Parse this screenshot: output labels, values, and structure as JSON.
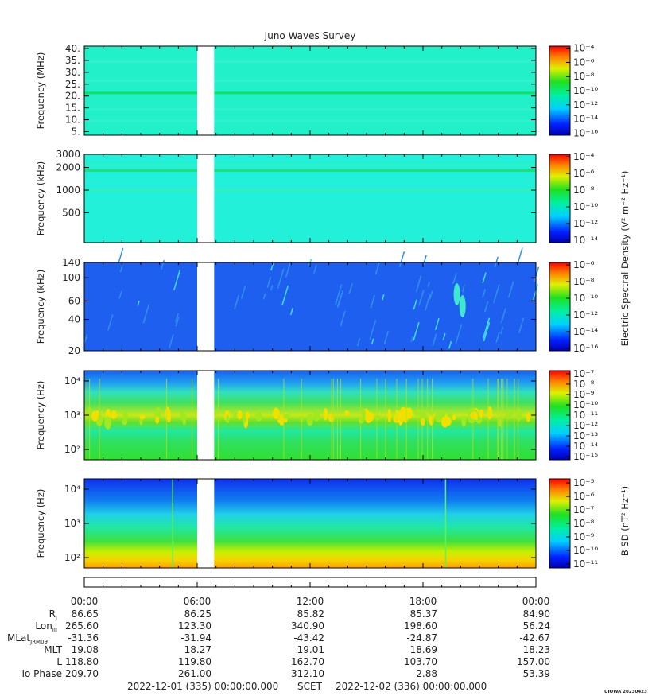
{
  "title": "Juno Waves Survey",
  "footer": {
    "start": "2022-12-01 (335) 00:00:00.000",
    "mid": "SCET",
    "end": "2022-12-02 (336) 00:00:00.000",
    "credit": "UIOWA 20230423"
  },
  "colorbar_titles": {
    "electric": "Electric Spectral Density (V² m⁻² Hz⁻¹)",
    "magnetic": "B SD (nT² Hz⁻¹)"
  },
  "time_ticks": [
    "00:00",
    "06:00",
    "12:00",
    "18:00",
    "00:00"
  ],
  "ephemeris": {
    "rows": [
      {
        "label": "RJ",
        "values": [
          "86.65",
          "86.25",
          "85.82",
          "85.37",
          "84.90"
        ]
      },
      {
        "label": "LonIII",
        "values": [
          "265.60",
          "123.30",
          "340.90",
          "198.60",
          "56.24"
        ]
      },
      {
        "label": "MLatJRM09",
        "values": [
          "-31.36",
          "-31.94",
          "-43.42",
          "-24.87",
          "-42.67"
        ]
      },
      {
        "label": "MLT",
        "values": [
          "19.08",
          "18.27",
          "19.01",
          "18.69",
          "18.23"
        ]
      },
      {
        "label": "L",
        "values": [
          "118.80",
          "119.80",
          "162.70",
          "103.70",
          "157.00"
        ]
      },
      {
        "label": "Io Phase",
        "values": [
          "209.70",
          "261.00",
          "312.10",
          "2.88",
          "53.39"
        ]
      }
    ]
  },
  "chart_data": [
    {
      "type": "heatmap",
      "ylabel": "Frequency (MHz)",
      "yscale": "linear",
      "ylim": [
        3.5,
        41
      ],
      "yticks": [
        5,
        10,
        15,
        20,
        25,
        30,
        35,
        40
      ],
      "ytick_labels": [
        "5.",
        "10.",
        "15.",
        "20.",
        "25.",
        "30.",
        "35.",
        "40."
      ],
      "data_gap": {
        "start_hour": 6.0,
        "end_hour": 6.9
      },
      "colorbar": {
        "labels": [
          "10⁻⁴",
          "10⁻⁶",
          "10⁻⁸",
          "10⁻¹⁰",
          "10⁻¹²",
          "10⁻¹⁴",
          "10⁻¹⁶"
        ],
        "exponents": [
          -4,
          -6,
          -8,
          -10,
          -12,
          -14,
          -16
        ]
      },
      "background_color": "#22f0c8"
    },
    {
      "type": "heatmap",
      "ylabel": "Frequency (kHz)",
      "yscale": "log",
      "ylim": [
        200,
        3000
      ],
      "yticks": [
        500,
        1000,
        2000,
        3000
      ],
      "ytick_labels": [
        "500",
        "1000",
        "2000",
        "3000"
      ],
      "data_gap": {
        "start_hour": 6.0,
        "end_hour": 6.9
      },
      "colorbar": {
        "labels": [
          "10⁻⁴",
          "10⁻⁶",
          "10⁻⁸",
          "10⁻¹⁰",
          "10⁻¹²",
          "10⁻¹⁴"
        ],
        "exponents": [
          -4,
          -6,
          -8,
          -10,
          -12,
          -14
        ]
      },
      "background_color": "#22f0d8"
    },
    {
      "type": "heatmap",
      "ylabel": "Frequency (kHz)",
      "yscale": "log",
      "ylim": [
        20,
        140
      ],
      "yticks": [
        20,
        40,
        60,
        100,
        140
      ],
      "ytick_labels": [
        "20",
        "40",
        "60",
        "100",
        "140"
      ],
      "data_gap": {
        "start_hour": 6.0,
        "end_hour": 6.9
      },
      "colorbar": {
        "labels": [
          "10⁻⁶",
          "10⁻⁸",
          "10⁻¹⁰",
          "10⁻¹²",
          "10⁻¹⁴",
          "10⁻¹⁶"
        ],
        "exponents": [
          -6,
          -8,
          -10,
          -12,
          -14,
          -16
        ]
      },
      "background_color": "#1f5ff0"
    },
    {
      "type": "heatmap",
      "ylabel": "Frequency (Hz)",
      "yscale": "log",
      "ylim": [
        50,
        20000
      ],
      "yticks": [
        100,
        1000,
        10000
      ],
      "ytick_labels": [
        "10²",
        "10³",
        "10⁴"
      ],
      "data_gap": {
        "start_hour": 6.0,
        "end_hour": 6.9
      },
      "colorbar": {
        "labels": [
          "10⁻⁷",
          "10⁻⁸",
          "10⁻⁹",
          "10⁻¹⁰",
          "10⁻¹¹",
          "10⁻¹²",
          "10⁻¹³",
          "10⁻¹⁴",
          "10⁻¹⁵"
        ],
        "exponents": [
          -7,
          -8,
          -9,
          -10,
          -11,
          -12,
          -13,
          -14,
          -15
        ]
      },
      "background_color": "#10e040"
    },
    {
      "type": "heatmap",
      "ylabel": "Frequency (Hz)",
      "yscale": "log",
      "ylim": [
        50,
        20000
      ],
      "yticks": [
        100,
        1000,
        10000
      ],
      "ytick_labels": [
        "10²",
        "10³",
        "10⁴"
      ],
      "data_gap": {
        "start_hour": 6.0,
        "end_hour": 6.9
      },
      "colorbar": {
        "labels": [
          "10⁻⁵",
          "10⁻⁶",
          "10⁻⁷",
          "10⁻⁸",
          "10⁻⁹",
          "10⁻¹⁰",
          "10⁻¹¹"
        ],
        "exponents": [
          -5,
          -6,
          -7,
          -8,
          -9,
          -10,
          -11
        ]
      },
      "background_color": "#1040f0"
    }
  ]
}
